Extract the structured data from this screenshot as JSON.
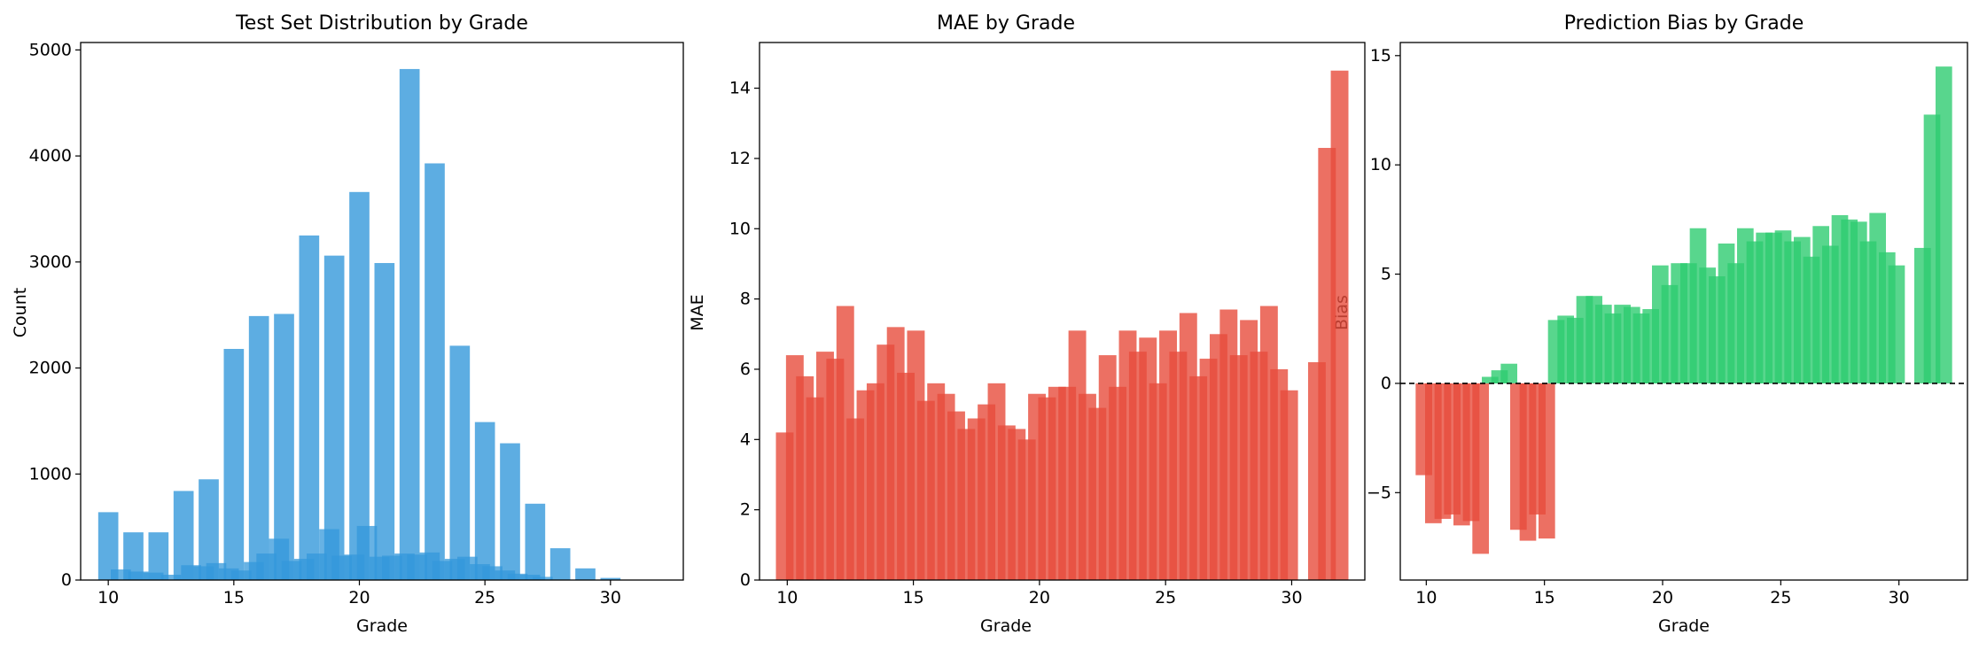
{
  "colors": {
    "count_bar": "#3498db",
    "mae_bar": "#e74c3c",
    "bias_positive": "#2ecc71",
    "bias_negative": "#e74c3c",
    "zero_line": "#000000"
  },
  "chart_data": [
    {
      "type": "bar",
      "title": "Test Set Distribution by Grade",
      "xlabel": "Grade",
      "ylabel": "Count",
      "xlim": [
        8.9,
        32.9
      ],
      "ylim": [
        0,
        5070
      ],
      "xticks": [
        10,
        15,
        20,
        25,
        30
      ],
      "yticks": [
        0,
        1000,
        2000,
        3000,
        4000,
        5000
      ],
      "bar_width": 0.8,
      "series": [
        {
          "x": [
            10,
            11,
            12,
            13,
            14,
            15,
            16,
            17,
            18,
            19,
            20,
            21,
            22,
            23,
            24,
            25,
            26,
            27,
            28,
            29,
            30
          ],
          "values": [
            640,
            450,
            450,
            840,
            950,
            2180,
            2490,
            2510,
            3250,
            3060,
            3660,
            2990,
            4820,
            3930,
            2210,
            1490,
            1290,
            720,
            300,
            110,
            20
          ]
        },
        {
          "x": [
            10.5,
            11.2,
            11.8,
            12.5,
            13.3,
            13.8,
            14.3,
            14.8,
            15.3,
            15.8,
            16.3,
            16.8,
            17.3,
            17.8,
            18.3,
            18.8,
            19.3,
            19.8,
            20.3,
            20.8,
            21.3,
            21.8,
            22.3,
            22.8,
            23.3,
            23.8,
            24.3,
            24.8,
            25.3,
            25.8,
            26.3,
            26.8,
            27.3
          ],
          "values": [
            100,
            80,
            70,
            50,
            140,
            130,
            160,
            110,
            90,
            170,
            250,
            390,
            180,
            200,
            250,
            480,
            230,
            240,
            510,
            220,
            230,
            250,
            240,
            260,
            180,
            200,
            220,
            150,
            130,
            90,
            60,
            50,
            30
          ]
        }
      ]
    },
    {
      "type": "bar",
      "title": "MAE by Grade",
      "xlabel": "Grade",
      "ylabel": "MAE",
      "xlim": [
        8.9,
        32.9
      ],
      "ylim": [
        0,
        15.3
      ],
      "xticks": [
        10,
        15,
        20,
        25,
        30
      ],
      "yticks": [
        0,
        2,
        4,
        6,
        8,
        10,
        12,
        14
      ],
      "x": [
        9.9,
        10.3,
        10.7,
        11.1,
        11.5,
        11.9,
        12.3,
        12.7,
        13.1,
        13.5,
        13.9,
        14.3,
        14.7,
        15.1,
        15.5,
        15.9,
        16.3,
        16.7,
        17.1,
        17.5,
        17.9,
        18.3,
        18.7,
        19.1,
        19.5,
        19.9,
        20.3,
        20.7,
        21.1,
        21.5,
        21.9,
        22.3,
        22.7,
        23.1,
        23.5,
        23.9,
        24.3,
        24.7,
        25.1,
        25.5,
        25.9,
        26.3,
        26.7,
        27.1,
        27.5,
        27.9,
        28.3,
        28.7,
        29.1,
        29.5,
        29.9,
        31.0,
        31.4,
        31.9
      ],
      "values": [
        4.2,
        6.4,
        5.8,
        5.2,
        6.5,
        6.3,
        7.8,
        4.6,
        5.4,
        5.6,
        6.7,
        7.2,
        5.9,
        7.1,
        5.1,
        5.6,
        5.3,
        4.8,
        4.3,
        4.6,
        5.0,
        5.6,
        4.4,
        4.3,
        4.0,
        5.3,
        5.2,
        5.5,
        5.5,
        7.1,
        5.3,
        4.9,
        6.4,
        5.5,
        7.1,
        6.5,
        6.9,
        5.6,
        7.1,
        6.5,
        7.6,
        5.8,
        6.3,
        7.0,
        7.7,
        6.4,
        7.4,
        6.5,
        7.8,
        6.0,
        5.4,
        6.2,
        12.3,
        14.5
      ]
    },
    {
      "type": "bar",
      "title": "Prediction Bias by Grade",
      "xlabel": "Grade",
      "ylabel": "Bias",
      "xlim": [
        8.9,
        32.9
      ],
      "ylim": [
        -9,
        15.6
      ],
      "xticks": [
        10,
        15,
        20,
        25,
        30
      ],
      "yticks": [
        -5,
        0,
        5,
        10,
        15
      ],
      "zero_line": 0,
      "x": [
        9.9,
        10.3,
        10.7,
        11.1,
        11.5,
        11.9,
        12.3,
        12.7,
        13.1,
        13.5,
        13.9,
        14.3,
        14.7,
        15.1,
        15.5,
        15.9,
        16.3,
        16.7,
        17.1,
        17.5,
        17.9,
        18.3,
        18.7,
        19.1,
        19.5,
        19.9,
        20.3,
        20.7,
        21.1,
        21.5,
        21.9,
        22.3,
        22.7,
        23.1,
        23.5,
        23.9,
        24.3,
        24.7,
        25.1,
        25.5,
        25.9,
        26.3,
        26.7,
        27.1,
        27.5,
        27.9,
        28.3,
        28.7,
        29.1,
        29.5,
        29.9,
        31.0,
        31.4,
        31.9
      ],
      "values": [
        -4.2,
        -6.4,
        -6.2,
        -6.0,
        -6.5,
        -6.3,
        -7.8,
        0.3,
        0.6,
        0.9,
        -6.7,
        -7.2,
        -6.0,
        -7.1,
        2.9,
        3.1,
        3.0,
        4.0,
        4.0,
        3.6,
        3.2,
        3.6,
        3.5,
        3.2,
        3.4,
        5.4,
        4.5,
        5.5,
        5.5,
        7.1,
        5.3,
        4.9,
        6.4,
        5.5,
        7.1,
        6.5,
        6.9,
        6.9,
        7.0,
        6.5,
        6.7,
        5.8,
        7.2,
        6.3,
        7.7,
        7.5,
        7.4,
        6.5,
        7.8,
        6.0,
        5.4,
        6.2,
        12.3,
        14.5
      ]
    }
  ]
}
